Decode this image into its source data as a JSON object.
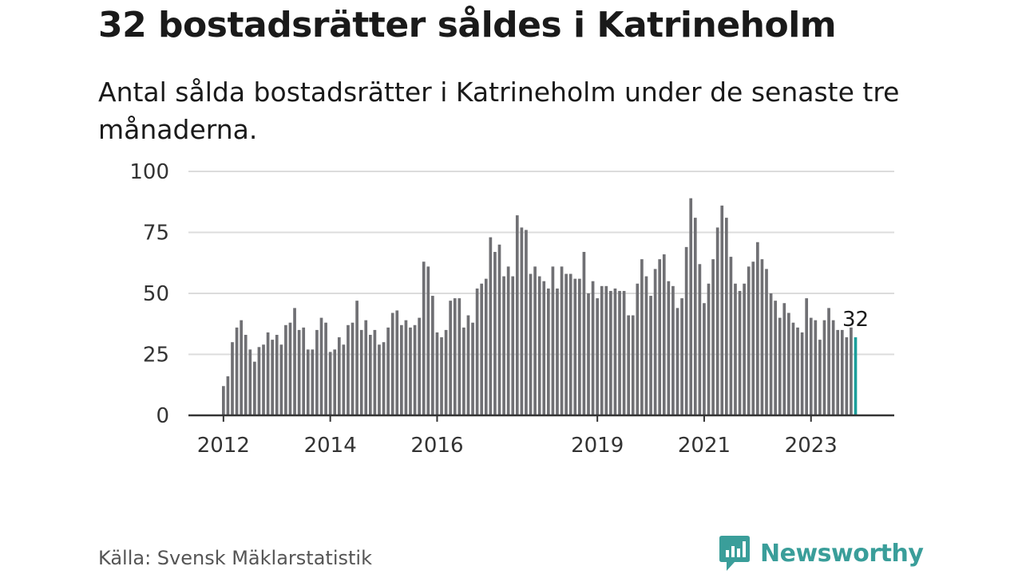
{
  "title": "32 bostadsrätter såldes i Katrineholm",
  "subtitle": "Antal sålda bostadsrätter i Katrineholm under de senaste tre månaderna.",
  "source": "Källa: Svensk Mäklarstatistik",
  "brand": {
    "name": "Newsworthy",
    "icon": "newsworthy-logo-icon"
  },
  "colors": {
    "bar": "#707074",
    "highlight": "#1a9e9a",
    "grid": "#dcdcdc",
    "axis": "#333333",
    "brand": "#3a9e9a"
  },
  "chart_data": {
    "type": "bar",
    "title": "32 bostadsrätter såldes i Katrineholm",
    "subtitle": "Antal sålda bostadsrätter i Katrineholm under de senaste tre månaderna.",
    "xlabel": "",
    "ylabel": "",
    "ylim": [
      0,
      100
    ],
    "yticks": [
      0,
      25,
      50,
      75,
      100
    ],
    "grid": true,
    "x_tick_labels": [
      {
        "label": "2012",
        "index": 0
      },
      {
        "label": "2014",
        "index": 24
      },
      {
        "label": "2016",
        "index": 48
      },
      {
        "label": "2019",
        "index": 84
      },
      {
        "label": "2021",
        "index": 108
      },
      {
        "label": "2023",
        "index": 132
      }
    ],
    "series": [
      {
        "values": [
          12,
          16,
          30,
          36,
          39,
          33,
          27,
          22,
          28,
          29,
          34,
          31,
          33,
          29,
          37,
          38,
          44,
          35,
          36,
          27,
          27,
          35,
          40,
          38,
          26,
          27,
          32,
          29,
          37,
          38,
          47,
          35,
          39,
          33,
          35,
          29,
          30,
          36,
          42,
          43,
          37,
          39,
          36,
          37,
          40,
          63,
          61,
          49,
          34,
          32,
          35,
          47,
          48,
          48,
          36,
          41,
          38,
          52,
          54,
          56,
          73,
          67,
          70,
          57,
          61,
          57,
          82,
          77,
          76,
          58,
          61,
          57,
          55,
          52,
          61,
          52,
          61,
          58,
          58,
          56,
          56,
          67,
          50,
          55,
          48,
          53,
          53,
          51,
          52,
          51,
          51,
          41,
          41,
          54,
          64,
          57,
          49,
          60,
          64,
          66,
          55,
          53,
          44,
          48,
          69,
          89,
          81,
          62,
          46,
          54,
          64,
          77,
          86,
          81,
          65,
          54,
          51,
          54,
          61,
          63,
          71,
          64,
          60,
          50,
          47,
          40,
          46,
          42,
          38,
          36,
          34,
          48,
          40,
          39,
          31,
          39,
          44,
          39,
          35,
          35,
          32,
          36,
          32
        ],
        "highlight_last": true
      }
    ],
    "annotations": [
      {
        "text": "32",
        "index": 142
      }
    ]
  }
}
